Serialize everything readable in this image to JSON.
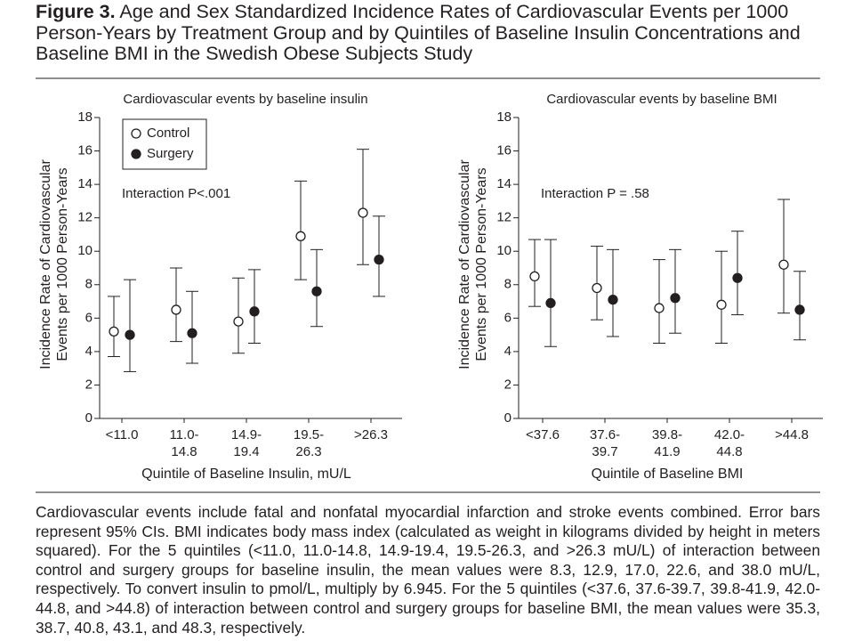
{
  "figure_label": "Figure 3.",
  "figure_title": "Age and Sex Standardized Incidence Rates of Cardiovascular Events per 1000 Person-Years by Treatment Group and by Quintiles of Baseline Insulin Concentrations and Baseline BMI in the Swedish Obese Subjects Study",
  "caption": "Cardiovascular events include fatal and nonfatal myocardial infarction and stroke events combined. Error bars represent 95% CIs. BMI indicates body mass index (calculated as weight in kilograms divided by height in meters squared). For the 5 quintiles (<11.0, 11.0-14.8, 14.9-19.4, 19.5-26.3, and >26.3 mU/L) of interaction between control and surgery groups for baseline insulin, the mean values were 8.3, 12.9, 17.0, 22.6, and 38.0 mU/L, respectively. To convert insulin to pmol/L, multiply by 6.945. For the 5 quintiles (<37.6, 37.6-39.7, 39.8-41.9, 42.0-44.8, and >44.8) of interaction between control and surgery groups for baseline BMI, the mean values were 35.3, 38.7, 40.8, 43.1, and 48.3, respectively.",
  "chart_data": [
    {
      "type": "errorbar",
      "title": "Cardiovascular events by baseline insulin",
      "y_label": [
        "Incidence Rate of Cardiovascular",
        "Events per 1000 Person-Years"
      ],
      "x_label": "Quintile of Baseline Insulin, mU/L",
      "annotation": "Interaction P<.001",
      "categories": [
        [
          "<11.0"
        ],
        [
          "11.0-",
          "14.8"
        ],
        [
          "14.9-",
          "19.4"
        ],
        [
          "19.5-",
          "26.3"
        ],
        [
          ">26.3"
        ]
      ],
      "series": [
        {
          "name": "Control",
          "color": "#ffffff",
          "values": [
            5.2,
            6.5,
            5.8,
            10.9,
            12.3
          ],
          "lower": [
            3.7,
            4.6,
            3.9,
            8.3,
            9.2
          ],
          "upper": [
            7.3,
            9.0,
            8.4,
            14.2,
            16.1
          ]
        },
        {
          "name": "Surgery",
          "color": "#231f20",
          "values": [
            5.0,
            5.1,
            6.4,
            7.6,
            9.5
          ],
          "lower": [
            2.8,
            3.3,
            4.5,
            5.5,
            7.3
          ],
          "upper": [
            8.3,
            7.6,
            8.9,
            10.1,
            12.1
          ]
        }
      ],
      "ylim": [
        0,
        18
      ],
      "yticks": [
        0,
        2,
        4,
        6,
        8,
        10,
        12,
        14,
        16,
        18
      ],
      "legend": "upper left"
    },
    {
      "type": "errorbar",
      "title": "Cardiovascular events by baseline BMI",
      "y_label": [
        "Incidence Rate of Cardiovascular",
        "Events per 1000 Person-Years"
      ],
      "x_label": "Quintile of Baseline BMI",
      "annotation": "Interaction P = .58",
      "categories": [
        [
          "<37.6"
        ],
        [
          "37.6-",
          "39.7"
        ],
        [
          "39.8-",
          "41.9"
        ],
        [
          "42.0-",
          "44.8"
        ],
        [
          ">44.8"
        ]
      ],
      "series": [
        {
          "color": "#ffffff",
          "values": [
            8.5,
            7.8,
            6.6,
            6.8,
            9.2
          ],
          "lower": [
            6.7,
            5.9,
            4.5,
            4.5,
            6.3
          ],
          "upper": [
            10.7,
            10.3,
            9.5,
            10.0,
            13.1
          ]
        },
        {
          "color": "#231f20",
          "values": [
            6.9,
            7.1,
            7.2,
            8.4,
            6.5
          ],
          "lower": [
            4.3,
            4.9,
            5.1,
            6.2,
            4.7
          ],
          "upper": [
            10.7,
            10.1,
            10.1,
            11.2,
            8.8
          ]
        }
      ],
      "ylim": [
        0,
        18
      ],
      "yticks": [
        0,
        2,
        4,
        6,
        8,
        10,
        12,
        14,
        16,
        18
      ]
    }
  ]
}
